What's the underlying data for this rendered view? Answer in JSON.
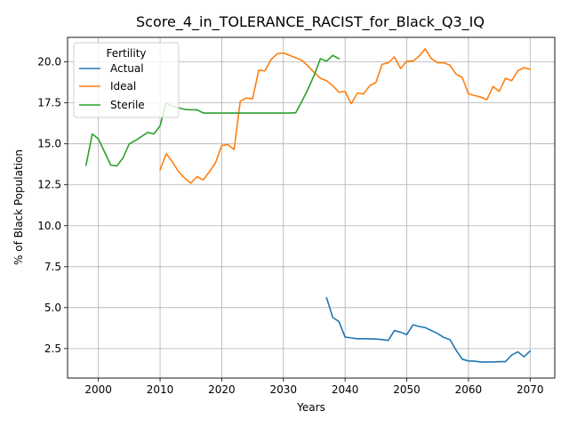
{
  "chart_data": {
    "type": "line",
    "title": "Score_4_in_TOLERANCE_RACIST_for_Black_Q3_IQ",
    "xlabel": "Years",
    "ylabel": "% of Black Population",
    "xlim": [
      1995,
      2074
    ],
    "ylim": [
      0.7,
      21.5
    ],
    "xticks": [
      2000,
      2010,
      2020,
      2030,
      2040,
      2050,
      2060,
      2070
    ],
    "yticks": [
      2.5,
      5.0,
      7.5,
      10.0,
      12.5,
      15.0,
      17.5,
      20.0
    ],
    "ytick_labels": [
      "2.5",
      "5.0",
      "7.5",
      "10.0",
      "12.5",
      "15.0",
      "17.5",
      "20.0"
    ],
    "grid": true,
    "legend": {
      "title": "Fertility",
      "position": "top-left"
    },
    "series": [
      {
        "name": "Actual",
        "color": "#1f77b4",
        "x": [
          2037,
          2038,
          2039,
          2040,
          2041,
          2042,
          2043,
          2044,
          2045,
          2046,
          2047,
          2048,
          2049,
          2050,
          2051,
          2052,
          2053,
          2054,
          2055,
          2056,
          2057,
          2058,
          2059,
          2060,
          2061,
          2062,
          2063,
          2064,
          2065,
          2066,
          2067,
          2068,
          2069,
          2070
        ],
        "y": [
          5.6,
          4.4,
          4.15,
          3.2,
          3.15,
          3.1,
          3.1,
          3.1,
          3.08,
          3.05,
          3.0,
          3.6,
          3.5,
          3.35,
          3.95,
          3.85,
          3.78,
          3.6,
          3.42,
          3.18,
          3.05,
          2.4,
          1.85,
          1.75,
          1.73,
          1.68,
          1.68,
          1.68,
          1.7,
          1.7,
          2.1,
          2.3,
          2.0,
          2.35
        ]
      },
      {
        "name": "Ideal",
        "color": "#ff7f0e",
        "x": [
          2010,
          2011,
          2012,
          2013,
          2014,
          2015,
          2016,
          2017,
          2018,
          2019,
          2020,
          2021,
          2022,
          2023,
          2024,
          2025,
          2026,
          2027,
          2028,
          2029,
          2030,
          2031,
          2032,
          2033,
          2034,
          2035,
          2036,
          2037,
          2038,
          2039,
          2040,
          2041,
          2042,
          2043,
          2044,
          2045,
          2046,
          2047,
          2048,
          2049,
          2050,
          2051,
          2052,
          2053,
          2054,
          2055,
          2056,
          2057,
          2058,
          2059,
          2060,
          2061,
          2062,
          2063,
          2064,
          2065,
          2066,
          2067,
          2068,
          2069,
          2070
        ],
        "y": [
          13.4,
          14.4,
          13.9,
          13.3,
          12.9,
          12.6,
          13.0,
          12.8,
          13.3,
          13.85,
          14.9,
          14.95,
          14.65,
          17.6,
          17.8,
          17.75,
          19.5,
          19.45,
          20.15,
          20.5,
          20.55,
          20.4,
          20.25,
          20.1,
          19.75,
          19.35,
          19.0,
          18.85,
          18.55,
          18.15,
          18.2,
          17.45,
          18.1,
          18.05,
          18.55,
          18.75,
          19.85,
          19.95,
          20.3,
          19.6,
          20.05,
          20.05,
          20.35,
          20.8,
          20.2,
          19.95,
          19.95,
          19.8,
          19.25,
          19.05,
          18.05,
          17.95,
          17.85,
          17.7,
          18.5,
          18.2,
          19.0,
          18.85,
          19.45,
          19.65,
          19.55
        ]
      },
      {
        "name": "Sterile",
        "color": "#2ca02c",
        "x": [
          1998,
          1999,
          2000,
          2001,
          2002,
          2003,
          2004,
          2005,
          2006,
          2007,
          2008,
          2009,
          2010,
          2011,
          2012,
          2013,
          2014,
          2015,
          2016,
          2017,
          2018,
          2019,
          2020,
          2021,
          2022,
          2023,
          2024,
          2025,
          2026,
          2027,
          2028,
          2029,
          2030,
          2031,
          2032,
          2033,
          2034,
          2035,
          2036,
          2037,
          2038,
          2039
        ],
        "y": [
          13.7,
          15.6,
          15.3,
          14.5,
          13.7,
          13.65,
          14.15,
          15.0,
          15.2,
          15.45,
          15.7,
          15.6,
          16.1,
          17.5,
          17.3,
          17.2,
          17.1,
          17.08,
          17.08,
          16.88,
          16.88,
          16.88,
          16.88,
          16.88,
          16.88,
          16.88,
          16.88,
          16.88,
          16.88,
          16.88,
          16.88,
          16.88,
          16.88,
          16.88,
          16.9,
          17.6,
          18.35,
          19.2,
          20.2,
          20.05,
          20.4,
          20.2
        ]
      }
    ]
  }
}
